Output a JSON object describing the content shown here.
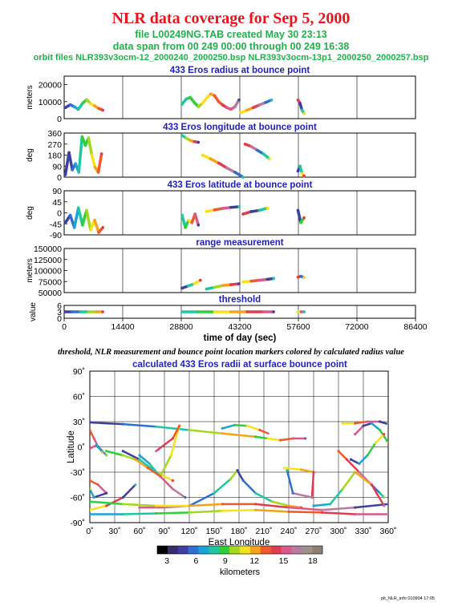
{
  "header": {
    "title": "NLR data coverage for Sep 5, 2000",
    "file_line": "file L00249NG.TAB created May 30 23:13",
    "span_line": "data span from 00 249 00:00 through 00 249 16:38",
    "orbit_line": "orbit files NLR393v3ocm-12_2000240_2000250.bsp NLR393v3ocm-13p1_2000250_2000257.bsp"
  },
  "caption": "threshold, NLR measurement and bounce point location markers colored by calculated radius value",
  "footer": "plt_NLR_info 010904 17:05",
  "colors": {
    "title": "#e8141e",
    "info": "#22b14c",
    "panel_title": "#1f1fbf",
    "colorbar": [
      "#000000",
      "#3a2a6e",
      "#3f3fa0",
      "#2e6fcf",
      "#1aa3d6",
      "#1fc7a0",
      "#2fcf3a",
      "#a4d81c",
      "#f5e21a",
      "#f5a31a",
      "#ee5a2a",
      "#e23c4f",
      "#d95a8a",
      "#b87aa0",
      "#a0908c",
      "#8c8070"
    ]
  },
  "chart_data": [
    {
      "type": "scatter",
      "title": "433 Eros radius at bounce point",
      "ylabel": "meters",
      "ylim": [
        0,
        25000
      ],
      "yticks": [
        "0",
        "10000",
        "20000"
      ],
      "segments": [
        {
          "x": [
            300,
            1500,
            2500,
            3500,
            4500,
            5500,
            6500,
            7500,
            8500,
            9500
          ],
          "y": [
            6500,
            8200,
            7000,
            5500,
            9000,
            11200,
            8800,
            7500,
            6000,
            5000
          ]
        },
        {
          "x": [
            29000,
            30000,
            31000,
            32000,
            33000,
            34000,
            35000,
            36000,
            37000,
            38000,
            39000,
            40000,
            41000,
            42000,
            43000
          ],
          "y": [
            8500,
            11500,
            12500,
            9500,
            7000,
            9000,
            12000,
            14500,
            13500,
            10000,
            8000,
            6500,
            5500,
            7000,
            11000
          ]
        },
        {
          "x": [
            43500,
            45000,
            46500,
            48000,
            49500,
            51000
          ],
          "y": [
            3500,
            5000,
            6500,
            8000,
            9500,
            11000
          ]
        },
        {
          "x": [
            57500,
            58000,
            58500,
            59000
          ],
          "y": [
            11000,
            9000,
            5000,
            3000
          ]
        }
      ]
    },
    {
      "type": "scatter",
      "title": "433 Eros longitude at bounce point",
      "ylabel": "deg",
      "ylim": [
        0,
        360
      ],
      "yticks": [
        "0",
        "90",
        "180",
        "270",
        "360"
      ],
      "segments": [
        {
          "x": [
            300,
            1200,
            2000,
            2800,
            3600,
            4400,
            5200,
            6000,
            6800,
            7600,
            8400,
            9200
          ],
          "y": [
            20,
            200,
            60,
            110,
            40,
            330,
            260,
            320,
            180,
            80,
            40,
            190
          ]
        },
        {
          "x": [
            29000,
            30000,
            31000,
            32000,
            33000
          ],
          "y": [
            340,
            320,
            300,
            290,
            285
          ]
        },
        {
          "x": [
            34000,
            36000,
            38000,
            40000,
            42000,
            44000
          ],
          "y": [
            180,
            150,
            115,
            75,
            40,
            0
          ]
        },
        {
          "x": [
            44500,
            46000,
            47500,
            49000,
            50500
          ],
          "y": [
            270,
            250,
            220,
            190,
            150
          ]
        },
        {
          "x": [
            57500,
            58000,
            58500,
            59000
          ],
          "y": [
            50,
            90,
            30,
            10
          ]
        }
      ]
    },
    {
      "type": "scatter",
      "title": "433 Eros latitude at bounce point",
      "ylabel": "deg",
      "ylim": [
        -90,
        90
      ],
      "yticks": [
        "-90",
        "-45",
        "0",
        "45",
        "90"
      ],
      "segments": [
        {
          "x": [
            300,
            1500,
            2500,
            3500,
            4500,
            5500,
            6500,
            7500,
            8500,
            9500
          ],
          "y": [
            -40,
            -10,
            -60,
            20,
            -50,
            10,
            -70,
            -30,
            -80,
            -60
          ]
        },
        {
          "x": [
            29000,
            29800,
            30600,
            31400,
            32200,
            33000
          ],
          "y": [
            -10,
            -60,
            -30,
            -40,
            -5,
            -50
          ]
        },
        {
          "x": [
            35000,
            37000,
            39000,
            41000,
            43000
          ],
          "y": [
            5,
            12,
            18,
            22,
            25
          ]
        },
        {
          "x": [
            44000,
            46000,
            48000,
            50000
          ],
          "y": [
            -5,
            5,
            10,
            20
          ]
        },
        {
          "x": [
            57500,
            58200,
            59000
          ],
          "y": [
            10,
            -40,
            -20
          ]
        }
      ]
    },
    {
      "type": "scatter",
      "title": "range measurement",
      "ylabel": "meters",
      "ylim": [
        50000,
        150000
      ],
      "yticks": [
        "50000",
        "75000",
        "100000",
        "125000",
        "150000"
      ],
      "segments": [
        {
          "x": [
            29000,
            30500,
            32000,
            33500
          ],
          "y": [
            60000,
            65000,
            70000,
            78000
          ]
        },
        {
          "x": [
            35000,
            37000,
            39000,
            41000,
            43000
          ],
          "y": [
            58000,
            62000,
            66000,
            68000,
            70000
          ]
        },
        {
          "x": [
            44000,
            46000,
            48000,
            50000,
            51500
          ],
          "y": [
            74000,
            76000,
            78000,
            80000,
            82000
          ]
        },
        {
          "x": [
            57500,
            58200,
            59000
          ],
          "y": [
            85000,
            87000,
            84000
          ]
        }
      ]
    },
    {
      "type": "scatter",
      "title": "threshold",
      "ylabel": "value",
      "ylim": [
        0,
        6
      ],
      "yticks": [
        "0",
        "3",
        "6"
      ],
      "xlabel": "time of day (sec)",
      "xlim": [
        0,
        86400
      ],
      "xticks": [
        "0",
        "14400",
        "28800",
        "43200",
        "57600",
        "72000",
        "86400"
      ],
      "segments": [
        {
          "x": [
            300,
            2000,
            4000,
            6000,
            8000,
            9500
          ],
          "y": [
            3,
            3,
            3,
            3,
            3,
            3
          ]
        },
        {
          "x": [
            29000,
            33000,
            37000,
            41000,
            45000,
            49000,
            51500
          ],
          "y": [
            3,
            3,
            3,
            3,
            3,
            3,
            3
          ]
        },
        {
          "x": [
            57500,
            58300,
            59000
          ],
          "y": [
            3,
            3,
            3
          ]
        }
      ]
    },
    {
      "type": "scatter",
      "title": "calculated 433 Eros radii at surface bounce point",
      "xlabel": "East Longitude",
      "ylabel": "Latitude",
      "xlim": [
        0,
        360
      ],
      "ylim": [
        -90,
        90
      ],
      "xticks": [
        "0˚",
        "30˚",
        "60˚",
        "90˚",
        "120˚",
        "150˚",
        "180˚",
        "210˚",
        "240˚",
        "270˚",
        "300˚",
        "330˚",
        "360˚"
      ],
      "yticks": [
        "-90˚",
        "-60˚",
        "-30˚",
        "0˚",
        "30˚",
        "60˚",
        "90˚"
      ],
      "colorbar_label": "kilometers",
      "colorbar_ticks": [
        "3",
        "6",
        "9",
        "12",
        "15",
        "18"
      ],
      "colorbar_range": [
        2,
        19
      ],
      "segments": [
        {
          "x": [
            0,
            40,
            80,
            120,
            160,
            200
          ],
          "y": [
            29,
            27,
            24,
            20,
            16,
            12
          ]
        },
        {
          "x": [
            160,
            175,
            190,
            205,
            215
          ],
          "y": [
            22,
            26,
            25,
            20,
            16
          ]
        },
        {
          "x": [
            200,
            215,
            230,
            245,
            260
          ],
          "y": [
            12,
            10,
            8,
            10,
            10
          ]
        },
        {
          "x": [
            305,
            320,
            335,
            350,
            360
          ],
          "y": [
            28,
            28,
            30,
            30,
            27
          ]
        },
        {
          "x": [
            0,
            5,
            10,
            15,
            20
          ],
          "y": [
            20,
            10,
            0,
            -5,
            -10
          ]
        },
        {
          "x": [
            0,
            8,
            15
          ],
          "y": [
            -2,
            2,
            -6
          ]
        },
        {
          "x": [
            40,
            60,
            80,
            100
          ],
          "y": [
            -5,
            -15,
            -30,
            -40
          ]
        },
        {
          "x": [
            60,
            72,
            85,
            98,
            108,
            100,
            80
          ],
          "y": [
            -10,
            -20,
            -35,
            -10,
            25,
            10,
            -5
          ]
        },
        {
          "x": [
            20,
            40,
            55,
            70,
            85,
            100,
            115
          ],
          "y": [
            -5,
            -10,
            -15,
            -25,
            -35,
            -50,
            -60
          ]
        },
        {
          "x": [
            0,
            20,
            40,
            55
          ],
          "y": [
            -75,
            -70,
            -60,
            -45
          ]
        },
        {
          "x": [
            0,
            10,
            20,
            5,
            0
          ],
          "y": [
            -40,
            -45,
            -55,
            -60,
            -50
          ]
        },
        {
          "x": [
            60,
            90,
            120,
            150,
            170,
            178
          ],
          "y": [
            -72,
            -72,
            -70,
            -55,
            -38,
            -28
          ]
        },
        {
          "x": [
            178,
            185,
            200,
            220,
            240,
            255
          ],
          "y": [
            -28,
            -40,
            -55,
            -65,
            -70,
            -72
          ]
        },
        {
          "x": [
            0,
            40,
            80,
            120,
            160,
            200,
            240,
            280,
            320,
            360
          ],
          "y": [
            -80,
            -80,
            -79,
            -78,
            -76,
            -75,
            -77,
            -78,
            -80,
            -80
          ]
        },
        {
          "x": [
            0,
            40,
            80,
            120,
            160,
            200,
            240,
            280,
            320,
            360
          ],
          "y": [
            -65,
            -68,
            -70,
            -70,
            -68,
            -68,
            -72,
            -75,
            -72,
            -68
          ]
        },
        {
          "x": [
            235,
            255,
            270,
            268,
            245,
            238
          ],
          "y": [
            -25,
            -27,
            -30,
            -60,
            -55,
            -28
          ]
        },
        {
          "x": [
            300,
            310,
            325,
            340,
            350,
            355
          ],
          "y": [
            -5,
            -15,
            -30,
            -45,
            -55,
            -60
          ]
        },
        {
          "x": [
            320,
            330,
            340,
            350,
            360
          ],
          "y": [
            15,
            25,
            28,
            20,
            5
          ]
        },
        {
          "x": [
            315,
            325,
            335,
            345,
            355
          ],
          "y": [
            -15,
            -20,
            -10,
            5,
            15
          ]
        },
        {
          "x": [
            270,
            290,
            305,
            320,
            340,
            355
          ],
          "y": [
            -70,
            -68,
            -50,
            -30,
            -45,
            -70
          ]
        }
      ]
    }
  ]
}
